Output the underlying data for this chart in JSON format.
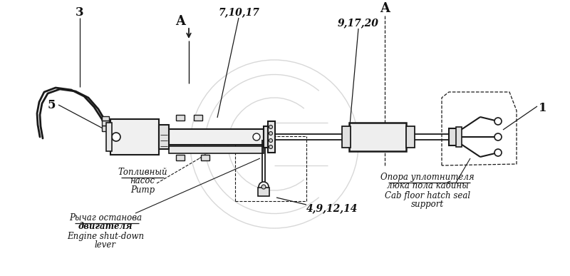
{
  "bg_color": "#ffffff",
  "line_color": "#1a1a1a",
  "text_color": "#111111",
  "labels": {
    "num_3": "3",
    "num_5": "5",
    "num_1": "1",
    "section_A_left": "A",
    "section_A_right": "A",
    "nums_7_10_17": "7,10,17",
    "nums_9_17_20": "9,17,20",
    "nums_4_9_12_14": "4,9,12,14",
    "pump_ru1": "Топливный",
    "pump_ru2": "насос",
    "pump_en": "Pump",
    "lever_ru1": "Рычаг останова",
    "lever_ru2": "двигателя",
    "lever_en": "Engine shut-down",
    "lever_en2": "lever",
    "support_ru1": "Опора уплотнителя",
    "support_ru2": "люка пола кабины",
    "support_en1": "Cab floor hatch seal",
    "support_en2": "support"
  }
}
